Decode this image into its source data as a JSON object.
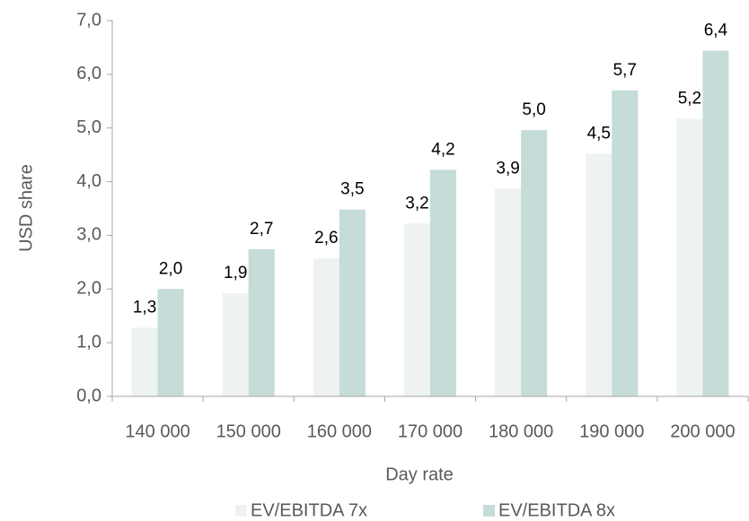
{
  "chart_data": {
    "type": "bar",
    "x_label": "Day rate",
    "y_label": "USD share",
    "categories": [
      "140 000",
      "150 000",
      "160 000",
      "170 000",
      "180 000",
      "190 000",
      "200 000"
    ],
    "series": [
      {
        "name": "EV/EBITDA 7x",
        "color": "#eef3f2",
        "values": [
          1.28,
          1.92,
          2.57,
          3.22,
          3.87,
          4.52,
          5.17
        ],
        "value_labels": [
          "1,3",
          "1,9",
          "2,6",
          "3,2",
          "3,9",
          "4,5",
          "5,2"
        ]
      },
      {
        "name": "EV/EBITDA 8x",
        "color": "#c5dcd8",
        "values": [
          2.0,
          2.74,
          3.48,
          4.22,
          4.96,
          5.7,
          6.44
        ],
        "value_labels": [
          "2,0",
          "2,7",
          "3,5",
          "4,2",
          "5,0",
          "5,7",
          "6,4"
        ]
      }
    ],
    "ylim": [
      0,
      7
    ],
    "yticks": [
      {
        "value": 0,
        "label": "0,0"
      },
      {
        "value": 1,
        "label": "1,0"
      },
      {
        "value": 2,
        "label": "2,0"
      },
      {
        "value": 3,
        "label": "3,0"
      },
      {
        "value": 4,
        "label": "4,0"
      },
      {
        "value": 5,
        "label": "5,0"
      },
      {
        "value": 6,
        "label": "6,0"
      },
      {
        "value": 7,
        "label": "7,0"
      }
    ],
    "grid": false,
    "legend": "bottom"
  }
}
